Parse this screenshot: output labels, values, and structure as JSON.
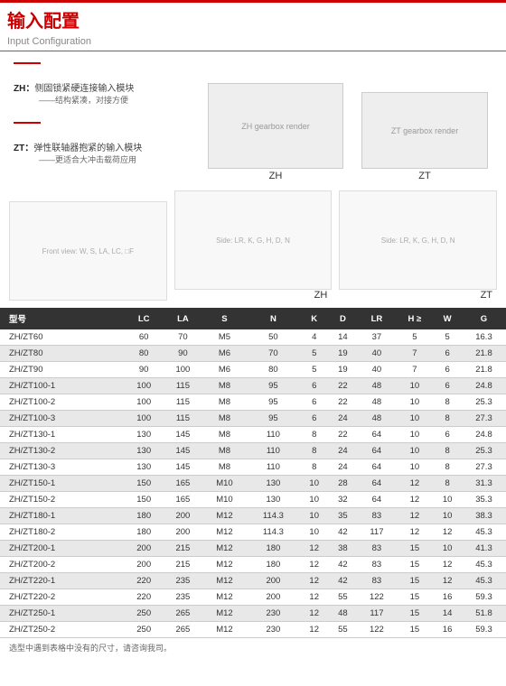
{
  "header": {
    "title_cn": "输入配置",
    "title_en": "Input Configuration"
  },
  "desc": {
    "zh_label": "ZH：",
    "zh_text": "侧固锁紧硬连接输入模块",
    "zh_sub": "——结构紧凑，对接方便",
    "zt_label": "ZT：",
    "zt_text": "弹性联轴器抱紧的输入模块",
    "zt_sub": "——更适合大冲击载荷应用"
  },
  "images": {
    "zh_label": "ZH",
    "zt_label": "ZT"
  },
  "diagrams": {
    "zh_label": "ZH",
    "zt_label": "ZT"
  },
  "table": {
    "headers": [
      "型号",
      "LC",
      "LA",
      "S",
      "N",
      "K",
      "D",
      "LR",
      "H ≥",
      "W",
      "G"
    ],
    "rows": [
      [
        "ZH/ZT60",
        "60",
        "70",
        "M5",
        "50",
        "4",
        "14",
        "37",
        "5",
        "5",
        "16.3"
      ],
      [
        "ZH/ZT80",
        "80",
        "90",
        "M6",
        "70",
        "5",
        "19",
        "40",
        "7",
        "6",
        "21.8"
      ],
      [
        "ZH/ZT90",
        "90",
        "100",
        "M6",
        "80",
        "5",
        "19",
        "40",
        "7",
        "6",
        "21.8"
      ],
      [
        "ZH/ZT100-1",
        "100",
        "115",
        "M8",
        "95",
        "6",
        "22",
        "48",
        "10",
        "6",
        "24.8"
      ],
      [
        "ZH/ZT100-2",
        "100",
        "115",
        "M8",
        "95",
        "6",
        "22",
        "48",
        "10",
        "8",
        "25.3"
      ],
      [
        "ZH/ZT100-3",
        "100",
        "115",
        "M8",
        "95",
        "6",
        "24",
        "48",
        "10",
        "8",
        "27.3"
      ],
      [
        "ZH/ZT130-1",
        "130",
        "145",
        "M8",
        "110",
        "8",
        "22",
        "64",
        "10",
        "6",
        "24.8"
      ],
      [
        "ZH/ZT130-2",
        "130",
        "145",
        "M8",
        "110",
        "8",
        "24",
        "64",
        "10",
        "8",
        "25.3"
      ],
      [
        "ZH/ZT130-3",
        "130",
        "145",
        "M8",
        "110",
        "8",
        "24",
        "64",
        "10",
        "8",
        "27.3"
      ],
      [
        "ZH/ZT150-1",
        "150",
        "165",
        "M10",
        "130",
        "10",
        "28",
        "64",
        "12",
        "8",
        "31.3"
      ],
      [
        "ZH/ZT150-2",
        "150",
        "165",
        "M10",
        "130",
        "10",
        "32",
        "64",
        "12",
        "10",
        "35.3"
      ],
      [
        "ZH/ZT180-1",
        "180",
        "200",
        "M12",
        "114.3",
        "10",
        "35",
        "83",
        "12",
        "10",
        "38.3"
      ],
      [
        "ZH/ZT180-2",
        "180",
        "200",
        "M12",
        "114.3",
        "10",
        "42",
        "117",
        "12",
        "12",
        "45.3"
      ],
      [
        "ZH/ZT200-1",
        "200",
        "215",
        "M12",
        "180",
        "12",
        "38",
        "83",
        "15",
        "10",
        "41.3"
      ],
      [
        "ZH/ZT200-2",
        "200",
        "215",
        "M12",
        "180",
        "12",
        "42",
        "83",
        "15",
        "12",
        "45.3"
      ],
      [
        "ZH/ZT220-1",
        "220",
        "235",
        "M12",
        "200",
        "12",
        "42",
        "83",
        "15",
        "12",
        "45.3"
      ],
      [
        "ZH/ZT220-2",
        "220",
        "235",
        "M12",
        "200",
        "12",
        "55",
        "122",
        "15",
        "16",
        "59.3"
      ],
      [
        "ZH/ZT250-1",
        "250",
        "265",
        "M12",
        "230",
        "12",
        "48",
        "117",
        "15",
        "14",
        "51.8"
      ],
      [
        "ZH/ZT250-2",
        "250",
        "265",
        "M12",
        "230",
        "12",
        "55",
        "122",
        "15",
        "16",
        "59.3"
      ]
    ]
  },
  "footnote": "选型中遇到表格中没有的尺寸，请咨询我司。"
}
